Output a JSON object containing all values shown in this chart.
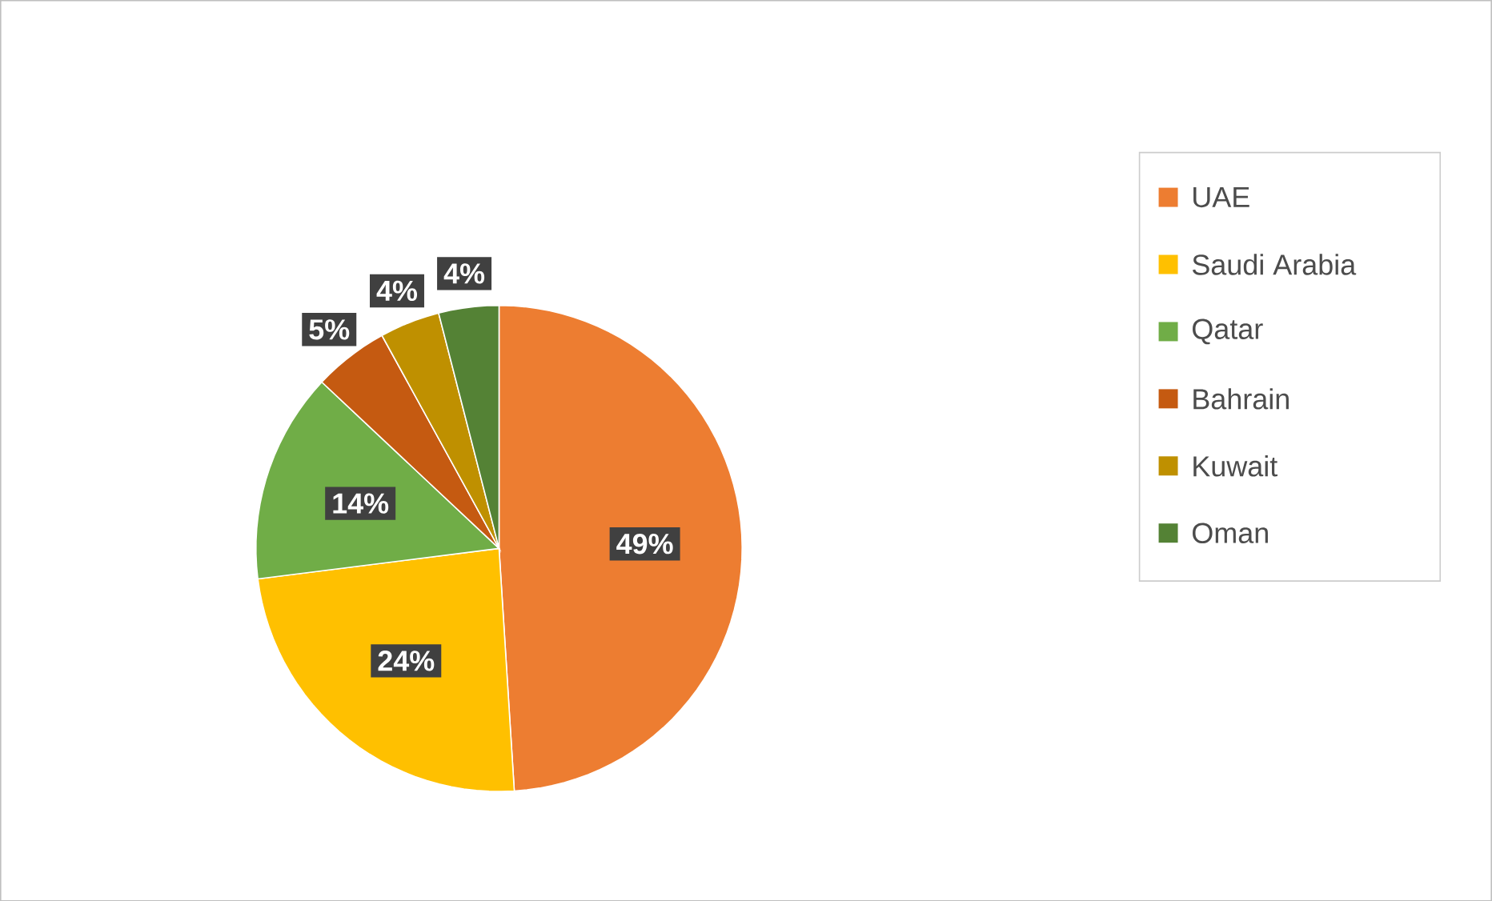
{
  "chart_data": {
    "type": "pie",
    "categories": [
      "UAE",
      "Saudi Arabia",
      "Qatar",
      "Bahrain",
      "Kuwait",
      "Oman"
    ],
    "values": [
      49,
      24,
      14,
      5,
      4,
      4
    ],
    "value_labels": [
      "49%",
      "24%",
      "14%",
      "5%",
      "4%",
      "4%"
    ],
    "colors": [
      "#ed7d31",
      "#ffc000",
      "#70ad47",
      "#c55a11",
      "#bf9000",
      "#548235"
    ],
    "data_labels": true,
    "legend": "right"
  }
}
